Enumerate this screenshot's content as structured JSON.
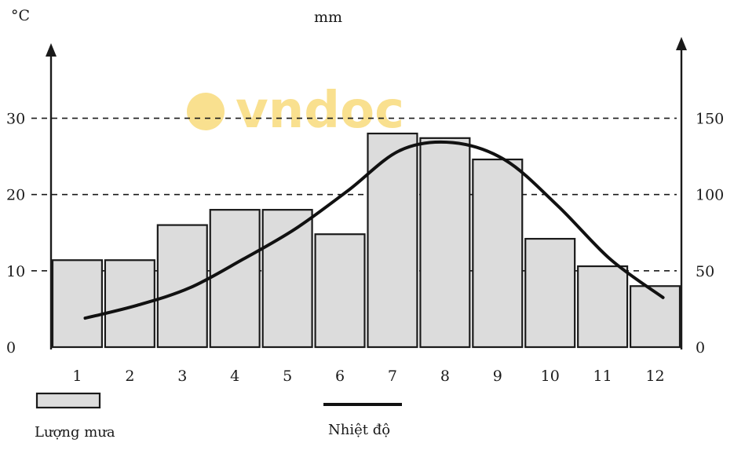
{
  "chart_data": {
    "type": "bar+line",
    "left_unit": "°C",
    "right_unit": "mm",
    "categories": [
      "1",
      "2",
      "3",
      "4",
      "5",
      "6",
      "7",
      "8",
      "9",
      "10",
      "11",
      "12"
    ],
    "series": [
      {
        "name": "Lượng mưa",
        "kind": "bar",
        "axis": "right",
        "values": [
          57,
          57,
          80,
          90,
          90,
          74,
          140,
          137,
          123,
          71,
          53,
          40
        ]
      },
      {
        "name": "Nhiệt độ",
        "kind": "line",
        "axis": "left",
        "values": [
          3.8,
          5.5,
          7.8,
          11.5,
          15.5,
          20.5,
          25.8,
          26.8,
          24.5,
          18.5,
          11.5,
          6.5
        ]
      }
    ],
    "left_axis": {
      "range": [
        0,
        35
      ],
      "ticks": [
        "0",
        "10",
        "20",
        "30"
      ],
      "tick_values": [
        0,
        10,
        20,
        30
      ]
    },
    "right_axis": {
      "range": [
        0,
        175
      ],
      "ticks": [
        "0",
        "50",
        "100",
        "150"
      ],
      "tick_values": [
        0,
        50,
        100,
        150
      ]
    },
    "grid": "dashed horizontal",
    "legend_placement": "bottom-left"
  },
  "watermark": {
    "text": "vndoc",
    "color": "#f7d66a"
  },
  "colors": {
    "bar_fill": "#dcdcdc",
    "ink": "#1a1a1a"
  }
}
